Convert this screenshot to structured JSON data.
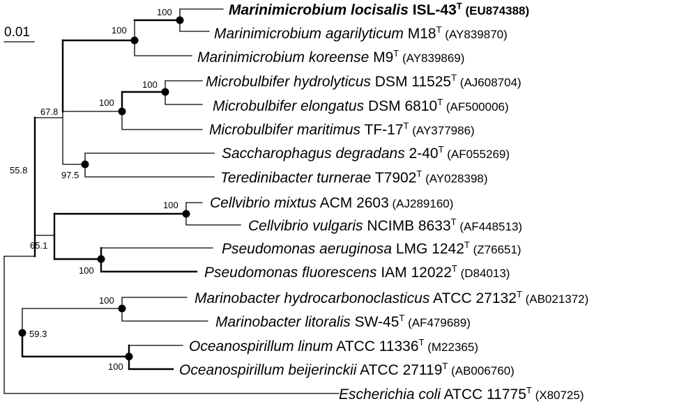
{
  "scale_bar": {
    "label": "0.01"
  },
  "taxa": [
    {
      "genus_species": "Marinimicrobium locisalis",
      "strain": "ISL-43",
      "type_strain": true,
      "accession": "(EU874388)",
      "bold": true
    },
    {
      "genus_species": "Marinimicrobium agarilyticum",
      "strain": "M18",
      "type_strain": true,
      "accession": "(AY839870)",
      "bold": false
    },
    {
      "genus_species": "Marinimicrobium koreense",
      "strain": "M9",
      "type_strain": true,
      "accession": "(AY839869)",
      "bold": false
    },
    {
      "genus_species": "Microbulbifer hydrolyticus",
      "strain": "DSM 11525",
      "type_strain": true,
      "accession": "(AJ608704)",
      "bold": false
    },
    {
      "genus_species": "Microbulbifer elongatus",
      "strain": "DSM 6810",
      "type_strain": true,
      "accession": "(AF500006)",
      "bold": false
    },
    {
      "genus_species": "Microbulbifer maritimus",
      "strain": "TF-17",
      "type_strain": true,
      "accession": "(AY377986)",
      "bold": false
    },
    {
      "genus_species": "Saccharophagus degradans",
      "strain": "2-40",
      "type_strain": true,
      "accession": "(AF055269)",
      "bold": false
    },
    {
      "genus_species": "Teredinibacter turnerae",
      "strain": "T7902",
      "type_strain": true,
      "accession": "(AY028398)",
      "bold": false
    },
    {
      "genus_species": "Cellvibrio mixtus",
      "strain": "ACM 2603",
      "type_strain": false,
      "accession": "(AJ289160)",
      "bold": false
    },
    {
      "genus_species": "Cellvibrio vulgaris",
      "strain": "NCIMB 8633",
      "type_strain": true,
      "accession": "(AF448513)",
      "bold": false
    },
    {
      "genus_species": "Pseudomonas aeruginosa",
      "strain": "LMG 1242",
      "type_strain": true,
      "accession": "(Z76651)",
      "bold": false
    },
    {
      "genus_species": "Pseudomonas fluorescens",
      "strain": "IAM 12022",
      "type_strain": true,
      "accession": "(D84013)",
      "bold": false
    },
    {
      "genus_species": "Marinobacter hydrocarbonoclasticus",
      "strain": "ATCC 27132",
      "type_strain": true,
      "accession": "(AB021372)",
      "bold": false
    },
    {
      "genus_species": "Marinobacter litoralis",
      "strain": "SW-45",
      "type_strain": true,
      "accession": "(AF479689)",
      "bold": false
    },
    {
      "genus_species": "Oceanospirillum linum",
      "strain": "ATCC 11336",
      "type_strain": true,
      "accession": "(M22365)",
      "bold": false
    },
    {
      "genus_species": "Oceanospirillum beijerinckii",
      "strain": "ATCC 27119",
      "type_strain": true,
      "accession": "(AB006760)",
      "bold": false
    },
    {
      "genus_species": "Escherichia coli",
      "strain": "ATCC 11775",
      "type_strain": true,
      "accession": "(X80725)",
      "bold": false
    }
  ],
  "type_marker": "T",
  "bootstrap_values": [
    "100",
    "100",
    "100",
    "100",
    "67.8",
    "97.5",
    "55.8",
    "100",
    "65.1",
    "100",
    "100",
    "59.3",
    "100"
  ]
}
